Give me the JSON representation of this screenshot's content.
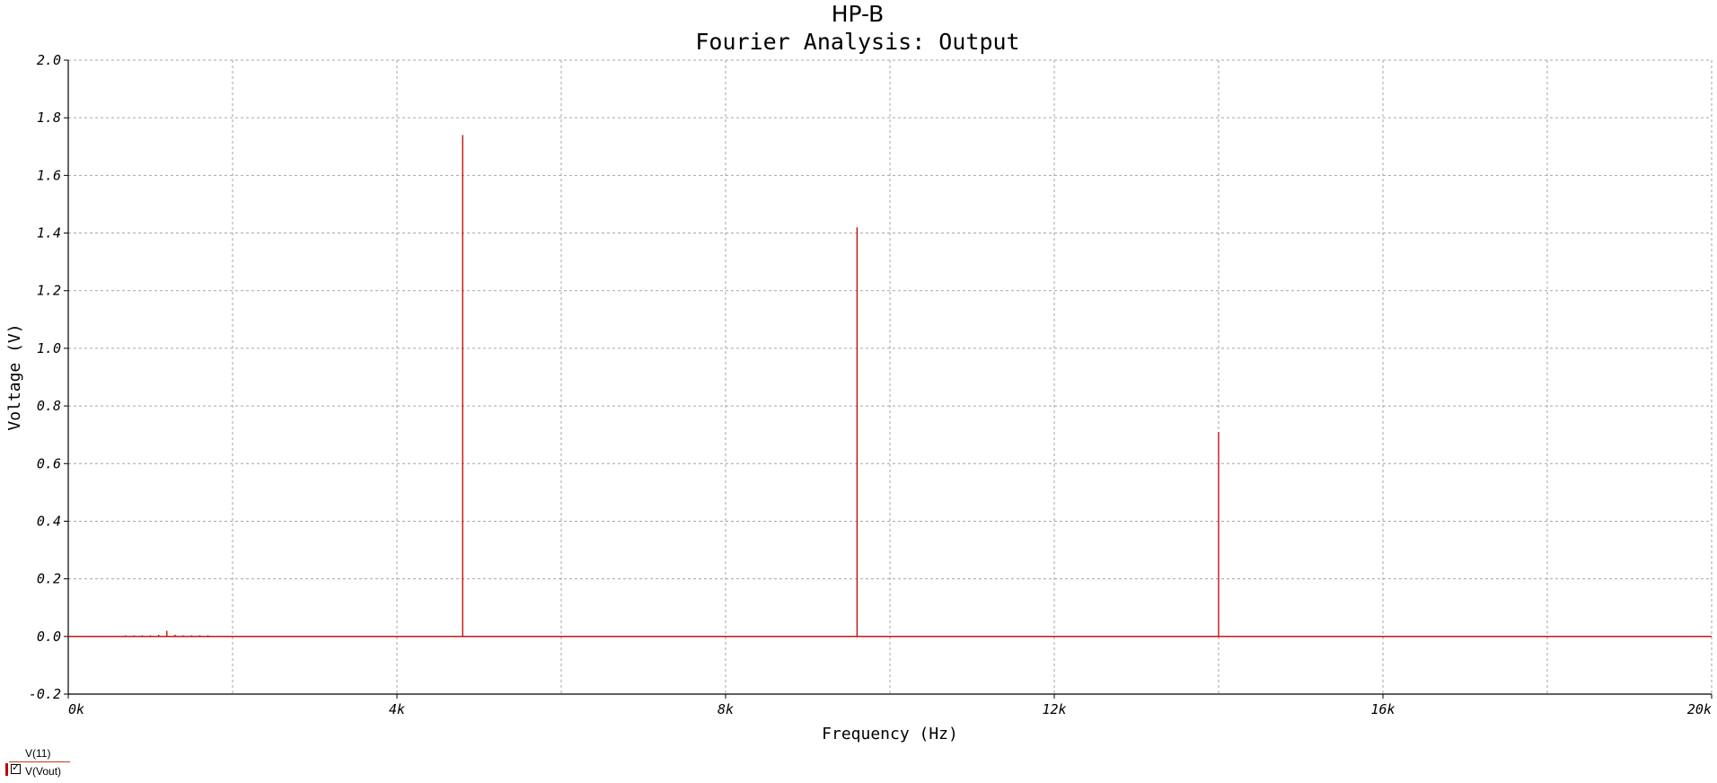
{
  "header": {
    "title": "HP-B",
    "subtitle": "Fourier Analysis: Output"
  },
  "legend": {
    "series_1": "V(11)",
    "series_2": "V(Vout)",
    "checkbox_checked": true
  },
  "colors": {
    "trace": "#c00000",
    "grid": "#a6a6a6",
    "axis": "#000000",
    "background": "#ffffff"
  },
  "chart_data": {
    "type": "line",
    "title": "HP-B",
    "subtitle": "Fourier Analysis: Output",
    "xlabel": "Frequency (Hz)",
    "ylabel": "Voltage (V)",
    "xlim": [
      0,
      20000
    ],
    "ylim": [
      -0.2,
      2.0
    ],
    "x_ticks": [
      {
        "value": 0,
        "label": "0k"
      },
      {
        "value": 4000,
        "label": "4k"
      },
      {
        "value": 8000,
        "label": "8k"
      },
      {
        "value": 12000,
        "label": "12k"
      },
      {
        "value": 16000,
        "label": "16k"
      },
      {
        "value": 20000,
        "label": "20k"
      }
    ],
    "x_minor_grid": [
      2000,
      6000,
      10000,
      14000,
      18000
    ],
    "y_ticks": [
      {
        "value": 2.0,
        "label": "2.0"
      },
      {
        "value": 1.8,
        "label": "1.8"
      },
      {
        "value": 1.6,
        "label": "1.6"
      },
      {
        "value": 1.4,
        "label": "1.4"
      },
      {
        "value": 1.2,
        "label": "1.2"
      },
      {
        "value": 1.0,
        "label": "1.0"
      },
      {
        "value": 0.8,
        "label": "0.8"
      },
      {
        "value": 0.6,
        "label": "0.6"
      },
      {
        "value": 0.4,
        "label": "0.4"
      },
      {
        "value": 0.2,
        "label": "0.2"
      },
      {
        "value": 0.0,
        "label": "0.0"
      },
      {
        "value": -0.2,
        "label": "-0.2"
      }
    ],
    "grid": true,
    "grid_style": "dashed",
    "series": [
      {
        "name": "V(Vout)",
        "baseline": 0.0,
        "spikes": [
          {
            "x": 700,
            "y": 0.004
          },
          {
            "x": 800,
            "y": 0.004
          },
          {
            "x": 900,
            "y": 0.004
          },
          {
            "x": 1000,
            "y": 0.004
          },
          {
            "x": 1100,
            "y": 0.006
          },
          {
            "x": 1200,
            "y": 0.02
          },
          {
            "x": 1300,
            "y": 0.006
          },
          {
            "x": 1400,
            "y": 0.004
          },
          {
            "x": 1500,
            "y": 0.004
          },
          {
            "x": 1600,
            "y": 0.004
          },
          {
            "x": 1700,
            "y": 0.004
          },
          {
            "x": 4800,
            "y": 1.74
          },
          {
            "x": 9600,
            "y": 1.42
          },
          {
            "x": 14000,
            "y": 0.71
          }
        ]
      }
    ]
  }
}
